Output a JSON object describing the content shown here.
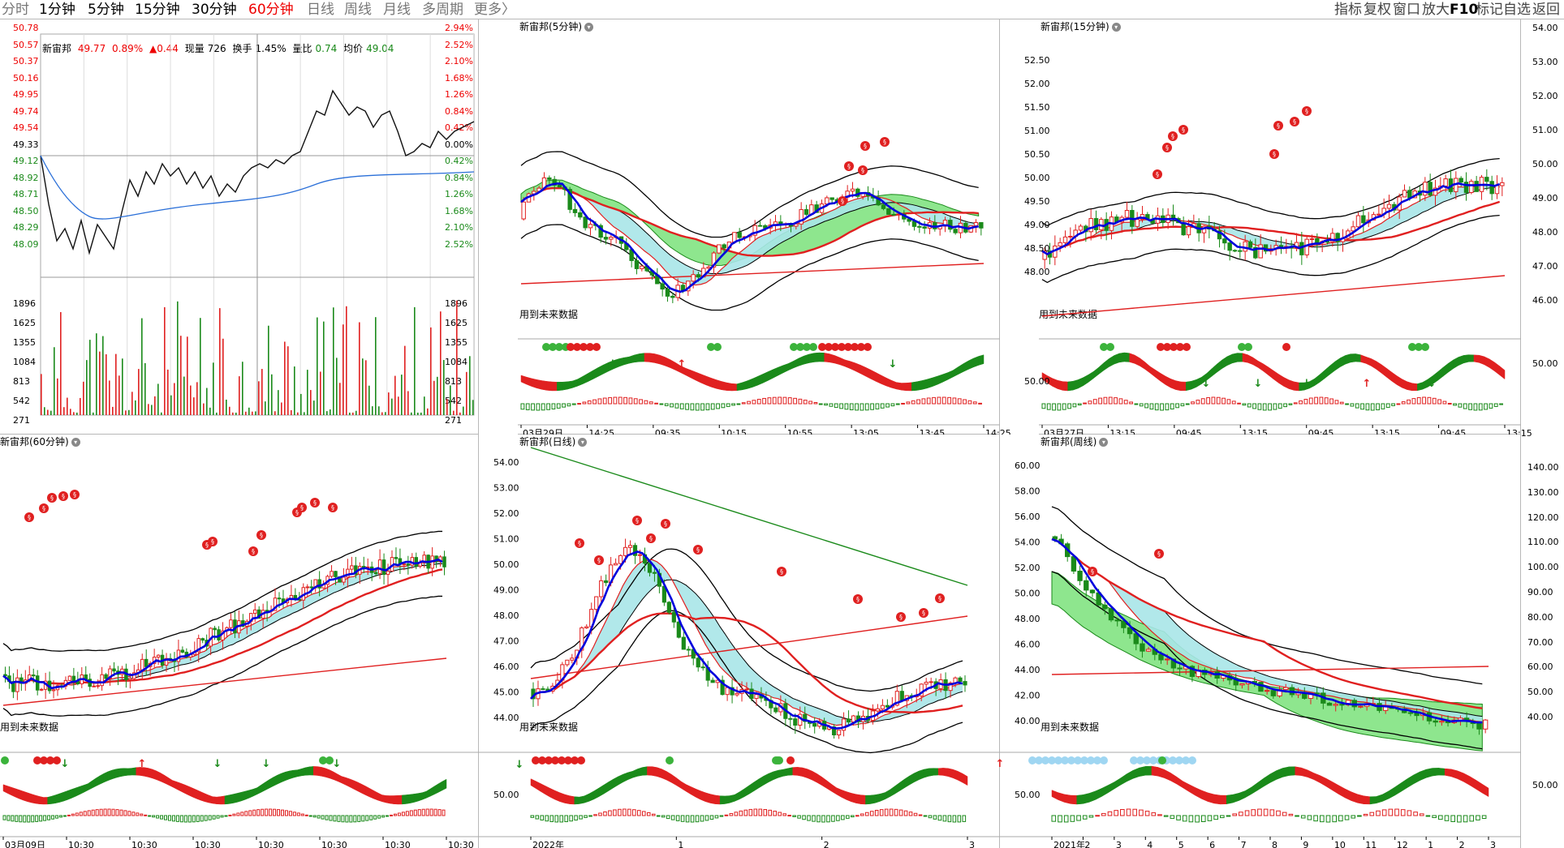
{
  "toolbar": {
    "periods": [
      "分时",
      "1分钟",
      "5分钟",
      "15分钟",
      "30分钟",
      "60分钟",
      "日线",
      "周线",
      "月线",
      "多周期",
      "更多〉"
    ],
    "active_period": "60分钟",
    "right_items": [
      "指标",
      "复权",
      "窗口",
      "放大",
      "F10",
      "标记",
      "自选",
      "返回"
    ]
  },
  "intraday": {
    "stock_name": "新宙邦",
    "price": "49.77",
    "change_pct": "0.89%",
    "change_arrow": "▲0.44",
    "volume_label": "现量",
    "volume_value": "726",
    "turnover_label": "换手",
    "turnover_value": "1.45%",
    "ratio_label": "量比",
    "ratio_value": "0.74",
    "avg_label": "均价",
    "avg_value": "49.04",
    "price_ticks_left": [
      "50.78",
      "50.57",
      "50.37",
      "50.16",
      "49.95",
      "49.74",
      "49.54",
      "49.33",
      "49.12",
      "48.92",
      "48.71",
      "48.50",
      "48.29",
      "48.09"
    ],
    "pct_ticks_right": [
      "2.94%",
      "2.52%",
      "2.10%",
      "1.68%",
      "1.26%",
      "0.84%",
      "0.42%",
      "0.00%",
      "0.42%",
      "0.84%",
      "1.26%",
      "1.68%",
      "2.10%",
      "2.52%"
    ],
    "vol_ticks": [
      "1896",
      "1625",
      "1355",
      "1084",
      "813",
      "542",
      "271"
    ]
  },
  "panels": {
    "p5": {
      "title": "新宙邦(5分钟)",
      "y_ticks": [],
      "note": "用到未来数据",
      "macd_tick": "",
      "date_ticks": [
        "03月29日",
        "14:25",
        "09:35",
        "10:15",
        "10:55",
        "13:05",
        "13:45",
        "14:25"
      ]
    },
    "p15": {
      "title": "新宙邦(15分钟)",
      "y_ticks": [
        "52.50",
        "52.00",
        "51.50",
        "51.00",
        "50.50",
        "50.00",
        "49.50",
        "49.00",
        "48.50",
        "48.00"
      ],
      "note": "用到未来数据",
      "macd_tick": "50.00",
      "date_ticks": [
        "03月27日",
        "13:15",
        "09:45",
        "13:15",
        "09:45",
        "13:15",
        "09:45",
        "13:15"
      ]
    },
    "p60": {
      "title": "新宙邦(60分钟)",
      "y_ticks": [],
      "note": "用到未来数据",
      "macd_tick": "",
      "date_ticks": [
        "03月09日",
        "10:30",
        "10:30",
        "10:30",
        "10:30",
        "10:30",
        "10:30",
        "10:30"
      ]
    },
    "pday": {
      "title": "新宙邦(日线)",
      "y_ticks": [
        "54.00",
        "53.00",
        "52.00",
        "51.00",
        "50.00",
        "49.00",
        "48.00",
        "47.00",
        "46.00",
        "45.00",
        "44.00"
      ],
      "note": "用到未来数据",
      "macd_tick": "50.00",
      "date_ticks": [
        "2022年",
        "1",
        "2",
        "3"
      ]
    },
    "pweek": {
      "title": "新宙邦(周线)",
      "y_ticks": [
        "60.00",
        "58.00",
        "56.00",
        "54.00",
        "52.00",
        "50.00",
        "48.00",
        "46.00",
        "44.00",
        "42.00",
        "40.00"
      ],
      "note": "用到未来数据",
      "macd_tick": "50.00",
      "date_ticks": [
        "2021年",
        "2",
        "3",
        "4",
        "5",
        "6",
        "7",
        "8",
        "9",
        "10",
        "11",
        "12",
        "1",
        "2",
        "3"
      ]
    }
  },
  "right_axis_top": [
    "54.00",
    "53.00",
    "52.00",
    "51.00",
    "50.00",
    "49.00",
    "48.00",
    "47.00",
    "46.00",
    "50.00"
  ],
  "right_axis_bottom": [
    "140.00",
    "130.00",
    "120.00",
    "110.00",
    "100.00",
    "90.00",
    "80.00",
    "70.00",
    "60.00",
    "50.00",
    "40.00",
    "50.00"
  ],
  "colors": {
    "up": "#e02020",
    "down": "#1a8a1a",
    "blue": "#0000dd",
    "cloud_green": "#8ee68e",
    "cloud_cyan": "#a8e6e8",
    "grid": "#aaaaaa"
  }
}
